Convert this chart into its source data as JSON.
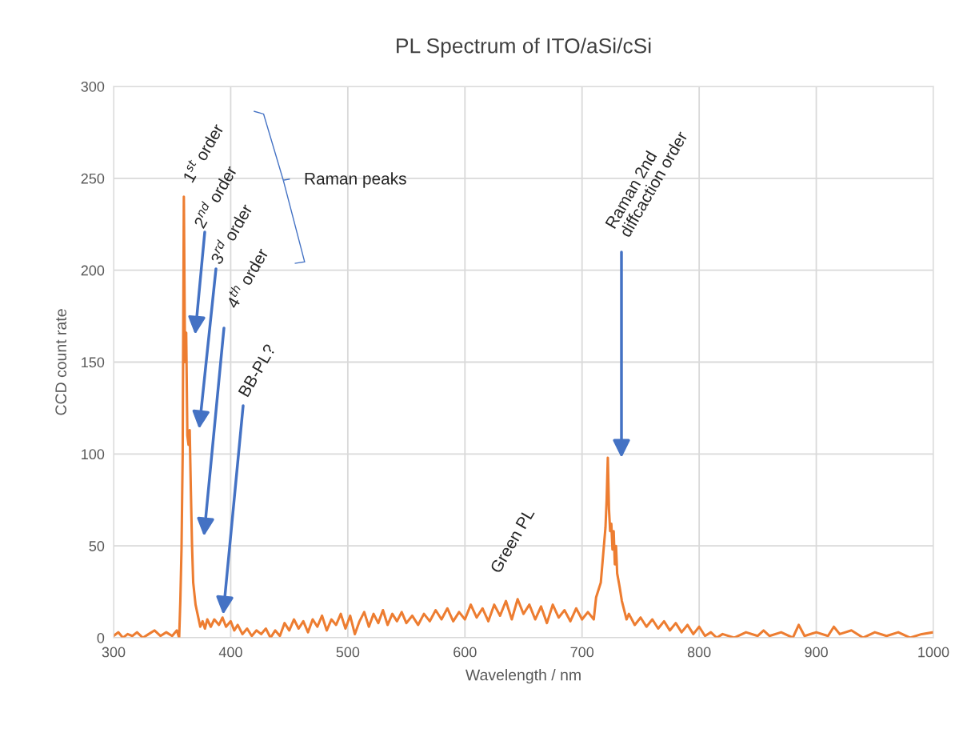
{
  "chart_data": {
    "type": "line",
    "title": "PL Spectrum of ITO/aSi/cSi",
    "xlabel": "Wavelength / nm",
    "ylabel": "CCD count rate",
    "xlim": [
      300,
      1000
    ],
    "xticks": [
      300,
      400,
      500,
      600,
      700,
      800,
      900,
      1000
    ],
    "ylim": [
      0,
      300
    ],
    "yticks": [
      0,
      50,
      100,
      150,
      200,
      250,
      300
    ],
    "grid": true,
    "marker": "none",
    "line_style": "solid",
    "x": [
      300,
      304,
      308,
      312,
      316,
      320,
      325,
      330,
      335,
      340,
      345,
      350,
      354,
      356,
      357,
      358,
      359,
      360,
      361,
      362,
      363,
      364,
      365,
      366,
      367,
      368,
      370,
      372,
      374,
      376,
      378,
      380,
      383,
      386,
      390,
      393,
      396,
      400,
      403,
      406,
      410,
      414,
      418,
      422,
      426,
      430,
      434,
      438,
      442,
      446,
      450,
      454,
      458,
      462,
      466,
      470,
      474,
      478,
      482,
      486,
      490,
      494,
      498,
      502,
      506,
      510,
      514,
      518,
      522,
      526,
      530,
      534,
      538,
      542,
      546,
      550,
      555,
      560,
      565,
      570,
      575,
      580,
      585,
      590,
      595,
      600,
      605,
      610,
      615,
      620,
      625,
      630,
      635,
      640,
      645,
      650,
      655,
      660,
      665,
      670,
      675,
      680,
      685,
      690,
      695,
      700,
      705,
      710,
      712,
      714,
      716,
      718,
      720,
      721,
      722,
      723,
      724,
      725,
      726,
      727,
      728,
      729,
      730,
      732,
      734,
      736,
      738,
      740,
      745,
      750,
      755,
      760,
      765,
      770,
      775,
      780,
      785,
      790,
      795,
      800,
      805,
      810,
      815,
      820,
      830,
      840,
      850,
      855,
      860,
      870,
      880,
      885,
      890,
      900,
      910,
      915,
      920,
      930,
      940,
      950,
      960,
      970,
      980,
      990,
      1000
    ],
    "series": [
      {
        "color": "#ed7d31",
        "values": [
          1,
          3,
          0,
          2,
          1,
          3,
          0,
          2,
          4,
          1,
          3,
          1,
          4,
          0,
          20,
          48,
          100,
          240,
          150,
          166,
          110,
          105,
          113,
          80,
          50,
          30,
          18,
          12,
          6,
          9,
          5,
          10,
          6,
          10,
          7,
          11,
          6,
          9,
          4,
          7,
          2,
          5,
          1,
          4,
          2,
          5,
          0,
          4,
          1,
          8,
          4,
          10,
          5,
          9,
          3,
          10,
          6,
          12,
          4,
          10,
          7,
          13,
          5,
          12,
          2,
          9,
          14,
          6,
          13,
          8,
          15,
          7,
          13,
          9,
          14,
          8,
          12,
          7,
          13,
          9,
          15,
          10,
          16,
          9,
          14,
          10,
          18,
          11,
          16,
          9,
          18,
          12,
          20,
          10,
          21,
          13,
          18,
          10,
          17,
          8,
          18,
          11,
          15,
          9,
          16,
          10,
          14,
          10,
          22,
          26,
          30,
          45,
          60,
          75,
          98,
          70,
          58,
          62,
          48,
          58,
          40,
          50,
          35,
          28,
          20,
          15,
          10,
          13,
          7,
          11,
          6,
          10,
          5,
          9,
          4,
          8,
          3,
          7,
          2,
          6,
          1,
          3,
          0,
          2,
          0,
          3,
          1,
          4,
          1,
          3,
          0,
          7,
          1,
          3,
          1,
          6,
          2,
          4,
          0,
          3,
          1,
          3,
          0,
          2,
          3
        ]
      }
    ],
    "annotations": [
      "1$^{st}$ order",
      "2$^{nd}$ order",
      "3$^{rd}$ order",
      "4$^{th}$ order",
      "BB-PL?",
      "Raman peaks",
      "Green PL",
      "Raman 2nd\ndiffcaction order"
    ]
  }
}
